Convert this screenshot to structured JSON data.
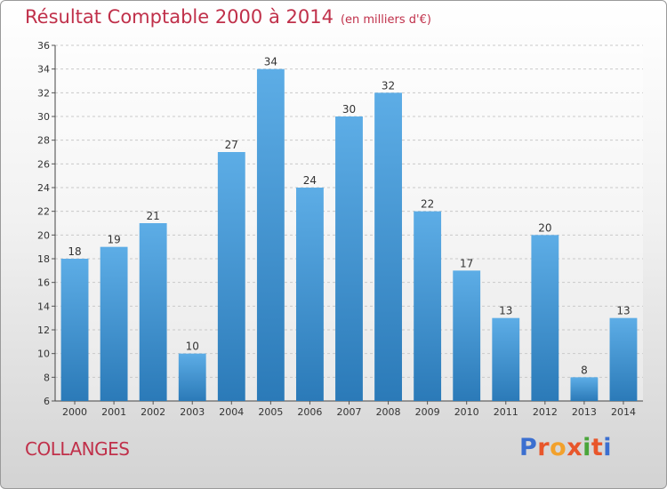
{
  "header": {
    "title": "Résultat Comptable 2000 à 2014",
    "unit": "(en milliers d'€)"
  },
  "footer": {
    "commune": "COLLANGES",
    "logo_text": "Proxiti"
  },
  "colors": {
    "bar_light": "#5dade6",
    "bar_dark": "#2b7ab8",
    "title": "#c0304a",
    "logo": [
      "#3b6fd0",
      "#e8562b",
      "#f2a12c",
      "#e8562b",
      "#4aa53a",
      "#e8562b",
      "#3b6fd0"
    ]
  },
  "chart_data": {
    "type": "bar",
    "title": "Résultat Comptable 2000 à 2014",
    "subtitle": "(en milliers d'€)",
    "categories": [
      "2000",
      "2001",
      "2002",
      "2003",
      "2004",
      "2005",
      "2006",
      "2007",
      "2008",
      "2009",
      "2010",
      "2011",
      "2012",
      "2013",
      "2014"
    ],
    "values": [
      18,
      19,
      21,
      10,
      27,
      34,
      24,
      30,
      32,
      22,
      17,
      13,
      20,
      8,
      13
    ],
    "ylim": [
      6,
      36
    ],
    "yticks": [
      6,
      8,
      10,
      12,
      14,
      16,
      18,
      20,
      22,
      24,
      26,
      28,
      30,
      32,
      34,
      36
    ],
    "grid": true,
    "xlabel": "",
    "ylabel": ""
  }
}
